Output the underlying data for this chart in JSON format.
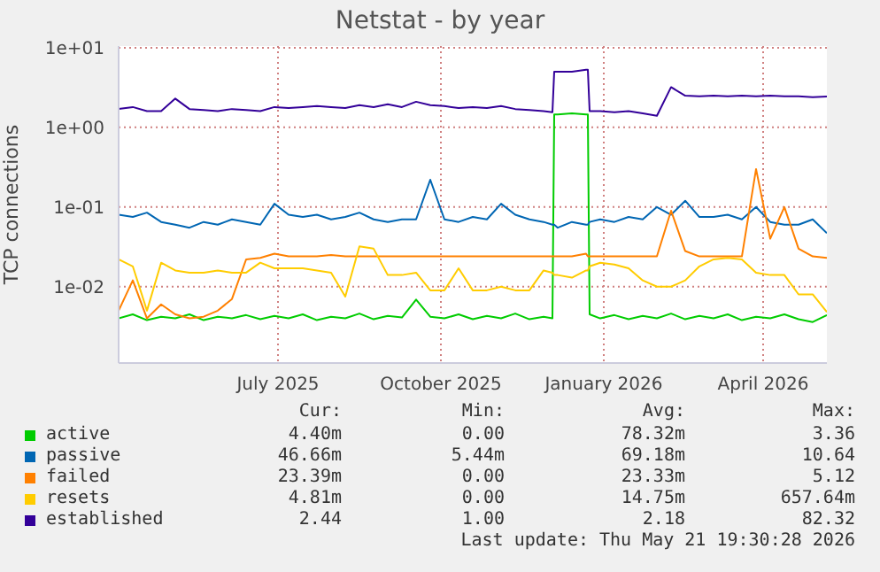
{
  "chart_data": {
    "type": "line",
    "title": "Netstat - by year",
    "ylabel": "TCP connections",
    "log": true,
    "grid": true,
    "legend": "bottom",
    "xlim": [
      "2025-04-02",
      "2026-05-07"
    ],
    "xticks": [
      {
        "value": "2025-07-01",
        "label": "July 2025"
      },
      {
        "value": "2025-10-01",
        "label": "October 2025"
      },
      {
        "value": "2026-01-01",
        "label": "January 2026"
      },
      {
        "value": "2026-04-01",
        "label": "April 2026"
      }
    ],
    "ylim": [
      0.0011,
      10.5
    ],
    "yticks": [
      {
        "value": 0.01,
        "label": "1e-02"
      },
      {
        "value": 0.1,
        "label": "1e-01"
      },
      {
        "value": 1,
        "label": "1e+00"
      },
      {
        "value": 10,
        "label": "1e+01"
      }
    ],
    "x": [
      "2025-04-02",
      "2025-04-10",
      "2025-04-18",
      "2025-04-26",
      "2025-05-04",
      "2025-05-12",
      "2025-05-20",
      "2025-05-28",
      "2025-06-05",
      "2025-06-13",
      "2025-06-21",
      "2025-06-29",
      "2025-07-07",
      "2025-07-15",
      "2025-07-23",
      "2025-07-31",
      "2025-08-08",
      "2025-08-16",
      "2025-08-24",
      "2025-09-01",
      "2025-09-09",
      "2025-09-17",
      "2025-09-25",
      "2025-10-03",
      "2025-10-11",
      "2025-10-19",
      "2025-10-27",
      "2025-11-04",
      "2025-11-12",
      "2025-11-20",
      "2025-11-28",
      "2025-12-03",
      "2025-12-04",
      "2025-12-06",
      "2025-12-14",
      "2025-12-22",
      "2025-12-23",
      "2025-12-24",
      "2025-12-30",
      "2026-01-07",
      "2026-01-15",
      "2026-01-23",
      "2026-01-31",
      "2026-02-08",
      "2026-02-16",
      "2026-02-24",
      "2026-03-04",
      "2026-03-12",
      "2026-03-20",
      "2026-03-28",
      "2026-04-05",
      "2026-04-13",
      "2026-04-21",
      "2026-04-29",
      "2026-05-07"
    ],
    "series": [
      {
        "name": "active",
        "color": "#00cc00",
        "values": [
          0.004,
          0.0045,
          0.0038,
          0.0042,
          0.004,
          0.0045,
          0.0038,
          0.0042,
          0.004,
          0.0044,
          0.0039,
          0.0043,
          0.004,
          0.0045,
          0.0038,
          0.0042,
          0.004,
          0.0046,
          0.0039,
          0.0043,
          0.0041,
          0.0069,
          0.0042,
          0.004,
          0.0045,
          0.0039,
          0.0043,
          0.004,
          0.0046,
          0.0039,
          0.0042,
          0.004,
          1.45,
          1.45,
          1.5,
          1.45,
          1.45,
          0.0045,
          0.004,
          0.0044,
          0.0039,
          0.0043,
          0.004,
          0.0046,
          0.0039,
          0.0043,
          0.004,
          0.0045,
          0.0038,
          0.0042,
          0.004,
          0.0045,
          0.0039,
          0.0036,
          0.0044
        ]
      },
      {
        "name": "passive",
        "color": "#0066b3",
        "values": [
          0.08,
          0.075,
          0.085,
          0.065,
          0.06,
          0.055,
          0.065,
          0.06,
          0.07,
          0.065,
          0.06,
          0.11,
          0.08,
          0.075,
          0.08,
          0.07,
          0.075,
          0.085,
          0.07,
          0.065,
          0.07,
          0.07,
          0.22,
          0.07,
          0.065,
          0.075,
          0.07,
          0.11,
          0.08,
          0.07,
          0.065,
          0.06,
          0.06,
          0.055,
          0.065,
          0.06,
          0.06,
          0.065,
          0.07,
          0.065,
          0.075,
          0.07,
          0.1,
          0.08,
          0.12,
          0.075,
          0.075,
          0.08,
          0.07,
          0.1,
          0.065,
          0.06,
          0.06,
          0.07,
          0.047
        ]
      },
      {
        "name": "failed",
        "color": "#ff8000",
        "values": [
          0.005,
          0.012,
          0.004,
          0.006,
          0.0045,
          0.004,
          0.0042,
          0.005,
          0.007,
          0.022,
          0.023,
          0.026,
          0.024,
          0.024,
          0.024,
          0.025,
          0.024,
          0.024,
          0.024,
          0.024,
          0.024,
          0.024,
          0.024,
          0.024,
          0.024,
          0.024,
          0.024,
          0.024,
          0.024,
          0.024,
          0.024,
          0.024,
          0.024,
          0.024,
          0.024,
          0.026,
          0.024,
          0.024,
          0.024,
          0.024,
          0.024,
          0.024,
          0.024,
          0.09,
          0.028,
          0.024,
          0.024,
          0.024,
          0.024,
          0.3,
          0.04,
          0.1,
          0.03,
          0.024,
          0.023
        ]
      },
      {
        "name": "resets",
        "color": "#ffcc00",
        "values": [
          0.022,
          0.018,
          0.005,
          0.02,
          0.016,
          0.015,
          0.015,
          0.016,
          0.015,
          0.015,
          0.02,
          0.017,
          0.017,
          0.017,
          0.016,
          0.015,
          0.0075,
          0.032,
          0.03,
          0.014,
          0.014,
          0.015,
          0.009,
          0.009,
          0.017,
          0.009,
          0.009,
          0.01,
          0.009,
          0.009,
          0.016,
          0.015,
          0.014,
          0.014,
          0.013,
          0.016,
          0.016,
          0.018,
          0.02,
          0.019,
          0.017,
          0.012,
          0.01,
          0.01,
          0.012,
          0.018,
          0.022,
          0.023,
          0.022,
          0.015,
          0.014,
          0.014,
          0.008,
          0.008,
          0.0048
        ]
      },
      {
        "name": "established",
        "color": "#330099",
        "values": [
          1.7,
          1.8,
          1.6,
          1.6,
          2.3,
          1.7,
          1.65,
          1.6,
          1.7,
          1.65,
          1.6,
          1.8,
          1.75,
          1.8,
          1.85,
          1.8,
          1.75,
          1.9,
          1.8,
          1.95,
          1.8,
          2.1,
          1.9,
          1.85,
          1.75,
          1.8,
          1.75,
          1.85,
          1.7,
          1.65,
          1.6,
          1.55,
          5.0,
          5.0,
          5.0,
          5.3,
          5.3,
          1.6,
          1.6,
          1.55,
          1.6,
          1.5,
          1.4,
          3.2,
          2.5,
          2.45,
          2.5,
          2.45,
          2.5,
          2.45,
          2.5,
          2.45,
          2.45,
          2.4,
          2.44
        ]
      }
    ],
    "annotations": [
      "Cur:",
      "Min:",
      "Avg:",
      "Max:",
      "4.40m",
      "0.00",
      "78.32m",
      "3.36",
      "46.66m",
      "5.44m",
      "69.18m",
      "10.64",
      "23.39m",
      "0.00",
      "23.33m",
      "5.12",
      "4.81m",
      "0.00",
      "14.75m",
      "657.64m",
      "2.44",
      "1.00",
      "2.18",
      "82.32",
      "Last update: Thu May 21 19:30:28 2026"
    ]
  }
}
